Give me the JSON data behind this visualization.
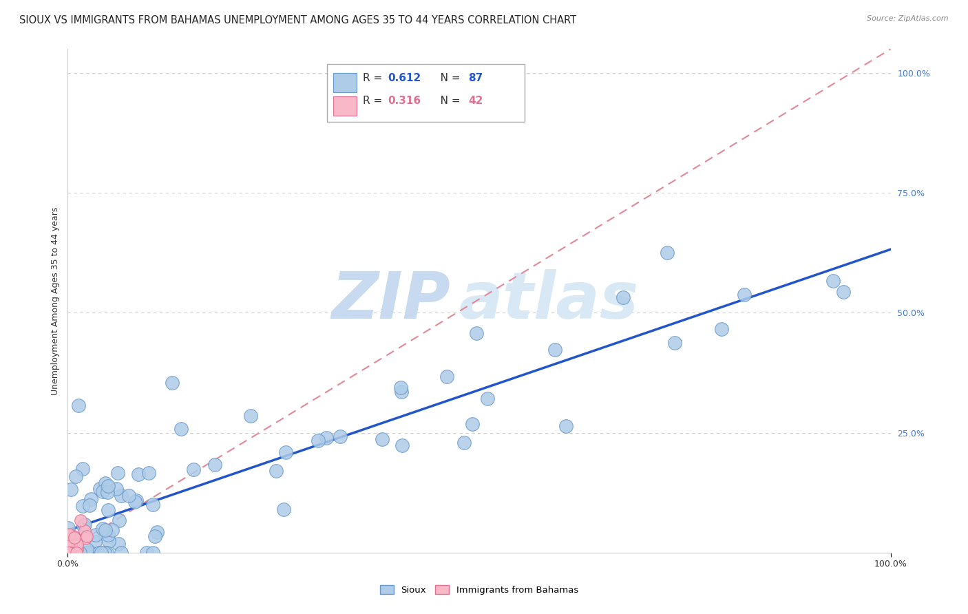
{
  "title": "SIOUX VS IMMIGRANTS FROM BAHAMAS UNEMPLOYMENT AMONG AGES 35 TO 44 YEARS CORRELATION CHART",
  "source": "Source: ZipAtlas.com",
  "ylabel": "Unemployment Among Ages 35 to 44 years",
  "sioux_color": "#aecce8",
  "sioux_edge_color": "#6699cc",
  "bahamas_color": "#f8b8c8",
  "bahamas_edge_color": "#e07090",
  "line_sioux_color": "#2255cc",
  "line_bahamas_color": "#e08898",
  "watermark_zi": "ZIP",
  "watermark_atlas": "atlas",
  "background_color": "#ffffff",
  "grid_color": "#cccccc",
  "watermark_color": "#dce8f4",
  "title_fontsize": 10.5,
  "ytick_color": "#4477cc",
  "legend_r_color_sioux": "#2255cc",
  "legend_r_color_bahamas": "#e07090"
}
